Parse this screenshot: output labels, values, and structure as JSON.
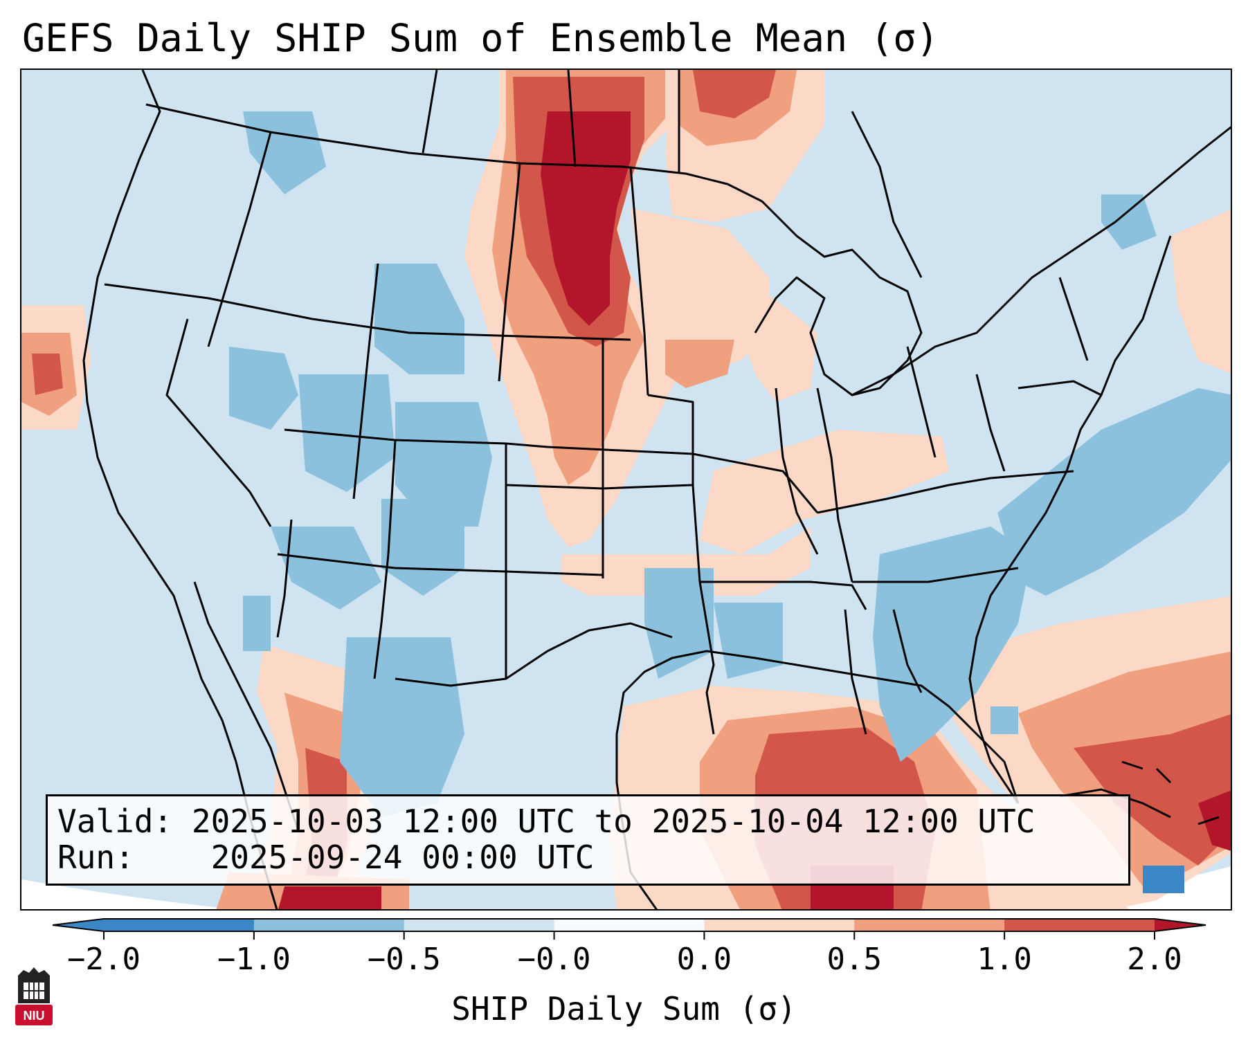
{
  "title": "GEFS Daily SHIP Sum of Ensemble Mean (σ)",
  "info": {
    "valid_label": "Valid:",
    "valid_value": "2025-10-03 12:00 UTC to 2025-10-04 12:00 UTC",
    "run_label": "Run:",
    "run_value": "2025-09-24 00:00 UTC"
  },
  "colorbar": {
    "label": "SHIP Daily Sum (σ)",
    "ticks": [
      "−2.0",
      "−1.0",
      "−0.5",
      "−0.0",
      "0.0",
      "0.5",
      "1.0",
      "2.0"
    ],
    "colors": [
      "#3a86c6",
      "#8cc1de",
      "#cfe4f0",
      "#f7fbff",
      "#fbd9c6",
      "#f0a07f",
      "#d3564a",
      "#b3162b"
    ]
  },
  "logo": {
    "text": "NIU",
    "name": "niu-logo"
  }
}
